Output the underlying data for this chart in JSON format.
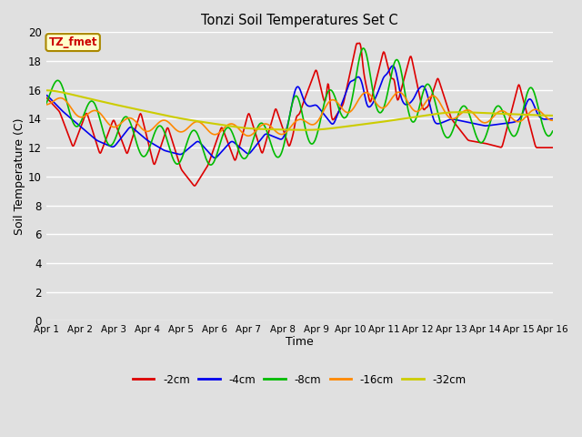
{
  "title": "Tonzi Soil Temperatures Set C",
  "xlabel": "Time",
  "ylabel": "Soil Temperature (C)",
  "annotation": "TZ_fmet",
  "ylim": [
    0,
    20
  ],
  "yticks": [
    0,
    2,
    4,
    6,
    8,
    10,
    12,
    14,
    16,
    18,
    20
  ],
  "x_labels": [
    "Apr 1",
    "Apr 2",
    "Apr 3",
    "Apr 4",
    "Apr 5",
    "Apr 6",
    "Apr 7",
    "Apr 8",
    "Apr 9",
    "Apr 10",
    "Apr 11",
    "Apr 12",
    "Apr 13",
    "Apr 14",
    "Apr 15",
    "Apr 16"
  ],
  "series_colors": [
    "#dd0000",
    "#0000ee",
    "#00bb00",
    "#ff8800",
    "#cccc00"
  ],
  "series_labels": [
    "-2cm",
    "-4cm",
    "-8cm",
    "-16cm",
    "-32cm"
  ],
  "bg_color": "#e0e0e0",
  "annotation_bg": "#ffffcc",
  "annotation_border": "#aa8800",
  "annotation_text_color": "#cc0000",
  "figwidth": 6.4,
  "figheight": 4.8,
  "dpi": 100
}
